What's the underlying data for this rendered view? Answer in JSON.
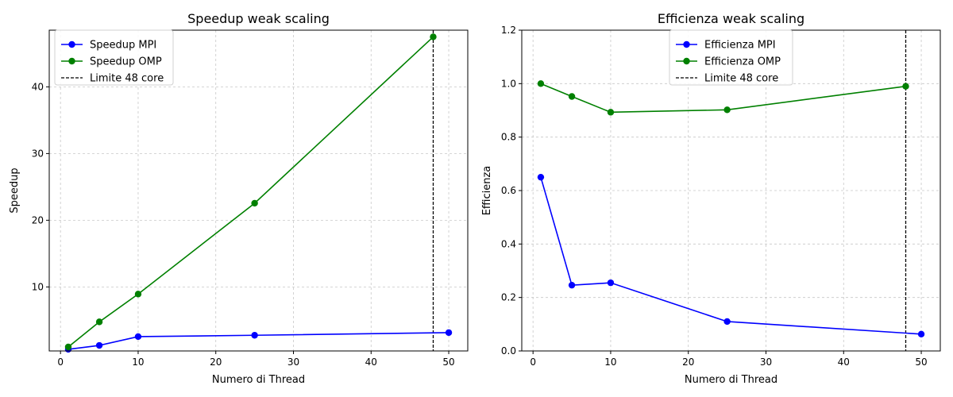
{
  "chart_data": [
    {
      "type": "line",
      "title": "Speedup weak scaling",
      "xlabel": "Numero di Thread",
      "ylabel": "Speedup",
      "xlim": [
        -1.45,
        52.45
      ],
      "ylim": [
        0.4,
        48.5
      ],
      "xticks": [
        0,
        10,
        20,
        30,
        40,
        50
      ],
      "yticks": [
        10,
        20,
        30,
        40
      ],
      "grid": true,
      "legend_position": "upper-left",
      "series": [
        {
          "name": "Speedup MPI",
          "color": "#0000ff",
          "marker": "circle",
          "x": [
            1,
            5,
            10,
            25,
            50
          ],
          "y": [
            0.65,
            1.23,
            2.55,
            2.75,
            3.15
          ]
        },
        {
          "name": "Speedup OMP",
          "color": "#008000",
          "marker": "circle",
          "x": [
            1,
            5,
            10,
            25,
            48
          ],
          "y": [
            1.0,
            4.76,
            8.93,
            22.55,
            47.5
          ]
        }
      ],
      "reference_line": {
        "name": "Limite 48 core",
        "x": 48,
        "color": "#000000",
        "style": "dashed"
      }
    },
    {
      "type": "line",
      "title": "Efficienza weak scaling",
      "xlabel": "Numero di Thread",
      "ylabel": "Efficienza",
      "xlim": [
        -1.45,
        52.45
      ],
      "ylim": [
        0,
        1.2
      ],
      "xticks": [
        0,
        10,
        20,
        30,
        40,
        50
      ],
      "yticks": [
        0.0,
        0.2,
        0.4,
        0.6,
        0.8,
        1.0,
        1.2
      ],
      "grid": true,
      "legend_position": "upper-center",
      "series": [
        {
          "name": "Efficienza MPI",
          "color": "#0000ff",
          "marker": "circle",
          "x": [
            1,
            5,
            10,
            25,
            50
          ],
          "y": [
            0.65,
            0.246,
            0.255,
            0.11,
            0.063
          ]
        },
        {
          "name": "Efficienza OMP",
          "color": "#008000",
          "marker": "circle",
          "x": [
            1,
            5,
            10,
            25,
            48
          ],
          "y": [
            1.0,
            0.952,
            0.893,
            0.902,
            0.99
          ]
        }
      ],
      "reference_line": {
        "name": "Limite 48 core",
        "x": 48,
        "color": "#000000",
        "style": "dashed"
      }
    }
  ]
}
